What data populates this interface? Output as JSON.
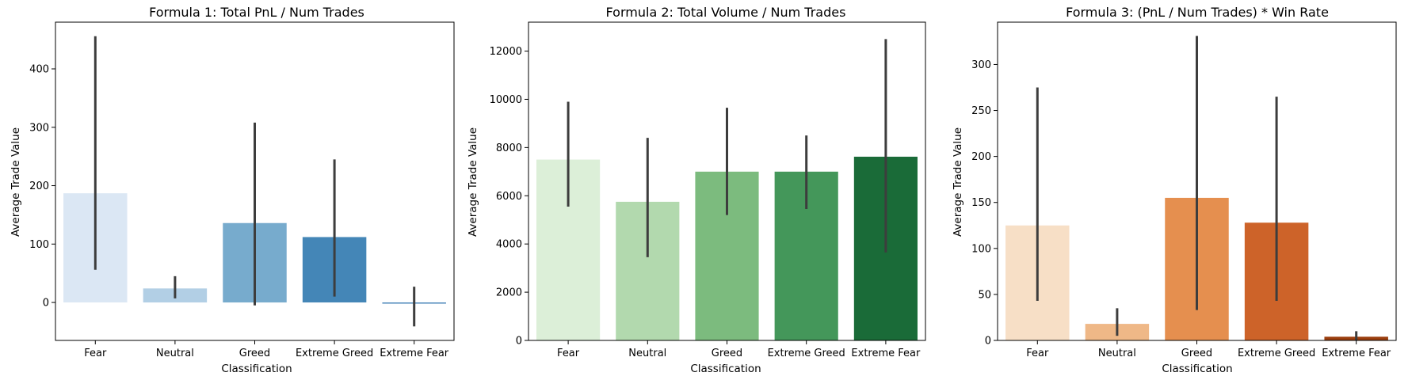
{
  "chart_data": [
    {
      "type": "bar",
      "title": "Formula 1: Total PnL / Num Trades",
      "xlabel": "Classification",
      "ylabel": "Average Trade Value",
      "categories": [
        "Fear",
        "Neutral",
        "Greed",
        "Extreme Greed",
        "Extreme Fear"
      ],
      "values": [
        187,
        24,
        136,
        112,
        -2
      ],
      "error_low": [
        56,
        7,
        -5,
        10,
        -41
      ],
      "error_high": [
        456,
        45,
        308,
        245,
        27
      ],
      "ylim": [
        -65,
        480
      ],
      "yticks": [
        0,
        100,
        200,
        300,
        400
      ],
      "ytick_labels": [
        "0",
        "100",
        "200",
        "300",
        "400"
      ],
      "colors": [
        "#dbe7f4",
        "#b2cfe5",
        "#77abcd",
        "#4486b7",
        "#4b87bb"
      ],
      "grid": false
    },
    {
      "type": "bar",
      "title": "Formula 2: Total Volume / Num Trades",
      "xlabel": "Classification",
      "ylabel": "Average Trade Value",
      "categories": [
        "Fear",
        "Neutral",
        "Greed",
        "Extreme Greed",
        "Extreme Fear"
      ],
      "values": [
        7500,
        5750,
        7000,
        7000,
        7620
      ],
      "error_low": [
        5550,
        3450,
        5200,
        5450,
        3650
      ],
      "error_high": [
        9900,
        8400,
        9650,
        8500,
        12500
      ],
      "ylim": [
        0,
        13200
      ],
      "yticks": [
        0,
        2000,
        4000,
        6000,
        8000,
        10000,
        12000
      ],
      "ytick_labels": [
        "0",
        "2000",
        "4000",
        "6000",
        "8000",
        "10000",
        "12000"
      ],
      "colors": [
        "#dcefd8",
        "#b2d9ae",
        "#7cbb7e",
        "#44975a",
        "#1a6b38"
      ],
      "grid": false
    },
    {
      "type": "bar",
      "title": "Formula 3: (PnL / Num Trades) * Win Rate",
      "xlabel": "Classification",
      "ylabel": "Average Trade Value",
      "categories": [
        "Fear",
        "Neutral",
        "Greed",
        "Extreme Greed",
        "Extreme Fear"
      ],
      "values": [
        125,
        18,
        155,
        128,
        4
      ],
      "error_low": [
        43,
        5,
        33,
        43,
        0
      ],
      "error_high": [
        275,
        35,
        331,
        265,
        10
      ],
      "ylim": [
        0,
        346
      ],
      "yticks": [
        0,
        50,
        100,
        150,
        200,
        250,
        300
      ],
      "ytick_labels": [
        "0",
        "50",
        "100",
        "150",
        "200",
        "250",
        "300"
      ],
      "colors": [
        "#f7dfc6",
        "#efb887",
        "#e58f4f",
        "#cd6329",
        "#9b3e0e"
      ],
      "grid": false
    }
  ]
}
